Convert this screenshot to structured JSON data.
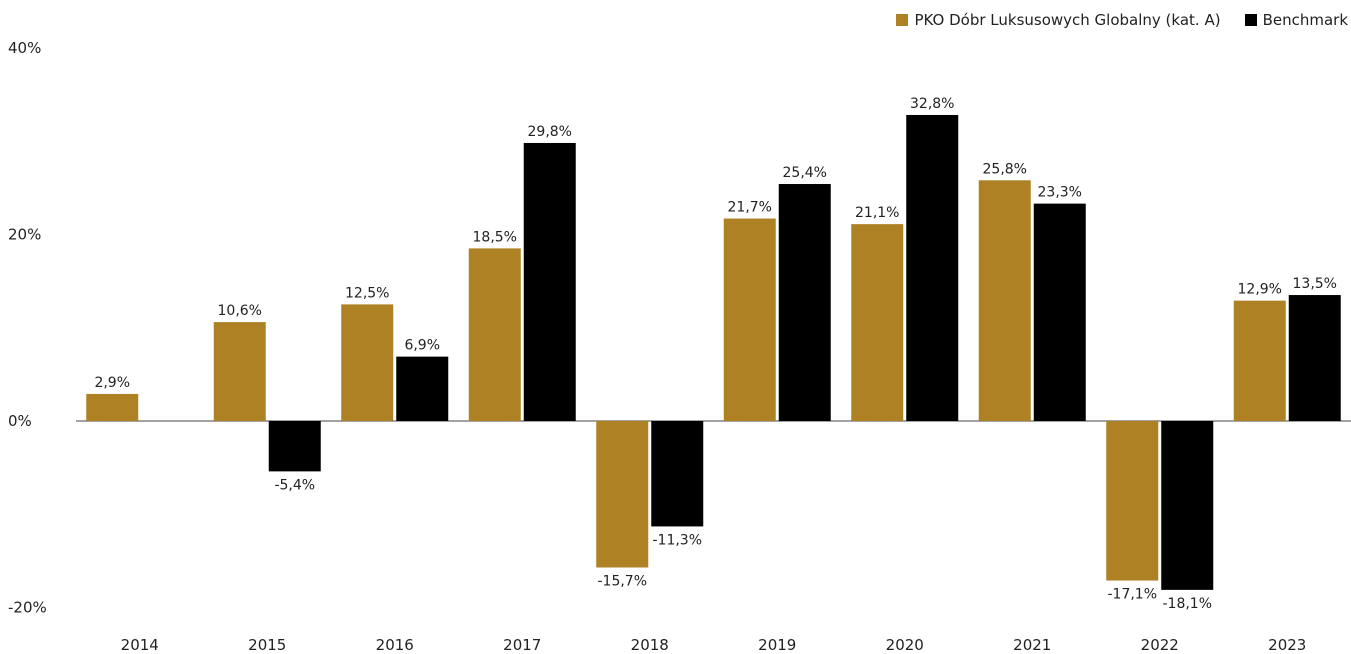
{
  "chart_data": {
    "type": "bar",
    "categories": [
      "2014",
      "2015",
      "2016",
      "2017",
      "2018",
      "2019",
      "2020",
      "2021",
      "2022",
      "2023"
    ],
    "series": [
      {
        "name": "PKO Dóbr Luksusowych Globalny (kat. A)",
        "color": "#AD8124",
        "values": [
          2.9,
          10.6,
          12.5,
          18.5,
          -15.7,
          21.7,
          21.1,
          25.8,
          -17.1,
          12.9
        ],
        "labels": [
          "2,9%",
          "10,6%",
          "12,5%",
          "18,5%",
          "-15,7%",
          "21,7%",
          "21,1%",
          "25,8%",
          "-17,1%",
          "12,9%"
        ]
      },
      {
        "name": "Benchmark",
        "color": "#000000",
        "values": [
          null,
          -5.4,
          6.9,
          29.8,
          -11.3,
          25.4,
          32.8,
          23.3,
          -18.1,
          13.5
        ],
        "labels": [
          null,
          "-5,4%",
          "6,9%",
          "29,8%",
          "-11,3%",
          "25,4%",
          "32,8%",
          "23,3%",
          "-18,1%",
          "13,5%"
        ]
      }
    ],
    "yticks": [
      {
        "value": 40,
        "label": "40%"
      },
      {
        "value": 20,
        "label": "20%"
      },
      {
        "value": 0,
        "label": "0%"
      },
      {
        "value": -20,
        "label": "-20%"
      }
    ],
    "ylim": [
      -20,
      40
    ],
    "grid": false,
    "legend_position": "top-right"
  }
}
